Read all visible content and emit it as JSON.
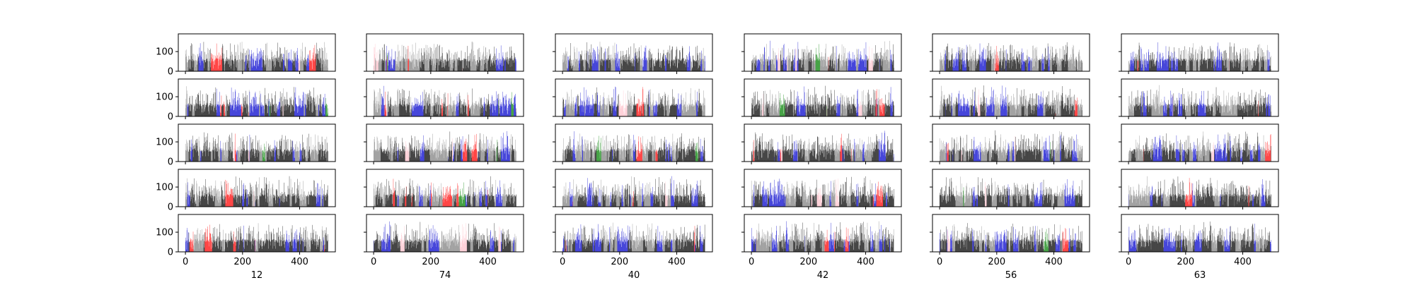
{
  "chart_data": {
    "type": "bar",
    "layout": {
      "rows": 5,
      "cols": 6
    },
    "shared_x": true,
    "shared_y": true,
    "xlim": [
      -25,
      525
    ],
    "ylim": [
      0,
      190
    ],
    "xticks": [
      0,
      200,
      400
    ],
    "yticks": [
      0,
      100
    ],
    "xtick_labels": [
      "0",
      "200",
      "400"
    ],
    "ytick_labels": [
      "0",
      "100"
    ],
    "column_xlabels": [
      "12",
      "74",
      "40",
      "42",
      "56",
      "63"
    ],
    "bar_count_per_panel": 500,
    "value_range_estimate": [
      0,
      160
    ],
    "typical_value": 70,
    "bar_colors": [
      "#000000",
      "#808080",
      "#0000cc",
      "#ff0000",
      "#ffc0cb",
      "#008000"
    ],
    "grid": false,
    "legend": "none"
  }
}
